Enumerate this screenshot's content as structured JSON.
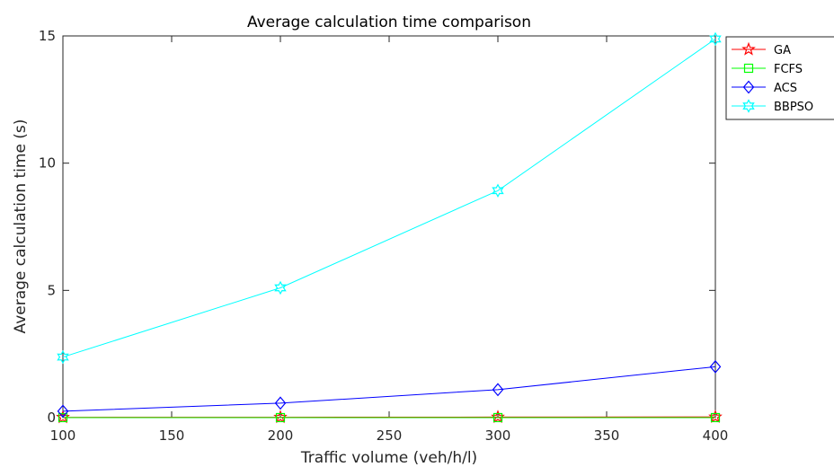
{
  "chart_data": {
    "type": "line",
    "title": "Average calculation time comparison",
    "xlabel": "Traffic volume (veh/h/l)",
    "ylabel": "Average calculation time (s)",
    "xlim": [
      100,
      400
    ],
    "ylim": [
      0,
      15
    ],
    "x_ticks": [
      100,
      150,
      200,
      250,
      300,
      350,
      400
    ],
    "y_ticks": [
      0,
      5,
      10,
      15
    ],
    "grid": false,
    "legend_position": "top-right-outside",
    "x": [
      100,
      200,
      300,
      400
    ],
    "series": [
      {
        "name": "GA",
        "values": [
          0.01,
          0.015,
          0.02,
          0.025
        ],
        "color": "#ff0000",
        "marker": "star"
      },
      {
        "name": "FCFS",
        "values": [
          0.001,
          0.001,
          0.001,
          0.001
        ],
        "color": "#00ff00",
        "marker": "square"
      },
      {
        "name": "ACS",
        "values": [
          0.25,
          0.57,
          1.1,
          2.0
        ],
        "color": "#0000ff",
        "marker": "diamond"
      },
      {
        "name": "BBPSO",
        "values": [
          2.38,
          5.1,
          8.92,
          14.88
        ],
        "color": "#00ffff",
        "marker": "hexagram"
      }
    ]
  }
}
